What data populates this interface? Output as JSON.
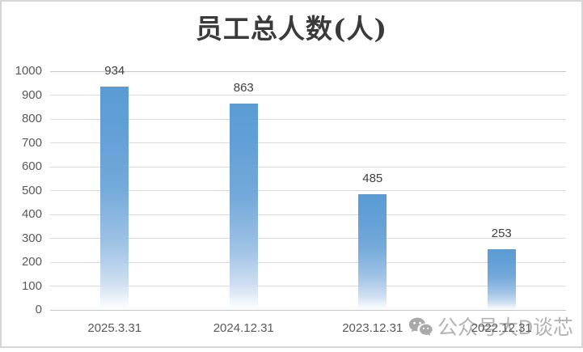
{
  "chart_data": {
    "type": "bar",
    "title": "员工总人数(人)",
    "categories": [
      "2025.3.31",
      "2024.12.31",
      "2023.12.31",
      "2022.12.31"
    ],
    "values": [
      934,
      863,
      485,
      253
    ],
    "xlabel": "",
    "ylabel": "",
    "ylim": [
      0,
      1000
    ],
    "ytick_step": 100,
    "grid": "horizontal",
    "legend_position": "none",
    "bar_color_top": "#5b9bd5",
    "bar_color_bottom": "#ffffff",
    "gridline_color": "#dcdcdc",
    "axis_line_color": "#c6c6c6",
    "axis_label_color": "#595959",
    "value_label_color": "#3f3f3f",
    "title_color": "#3a3a3a"
  },
  "watermark": {
    "icon": "wechat-icon",
    "text": "公众号大D谈芯",
    "color": "#b3b3b3"
  }
}
